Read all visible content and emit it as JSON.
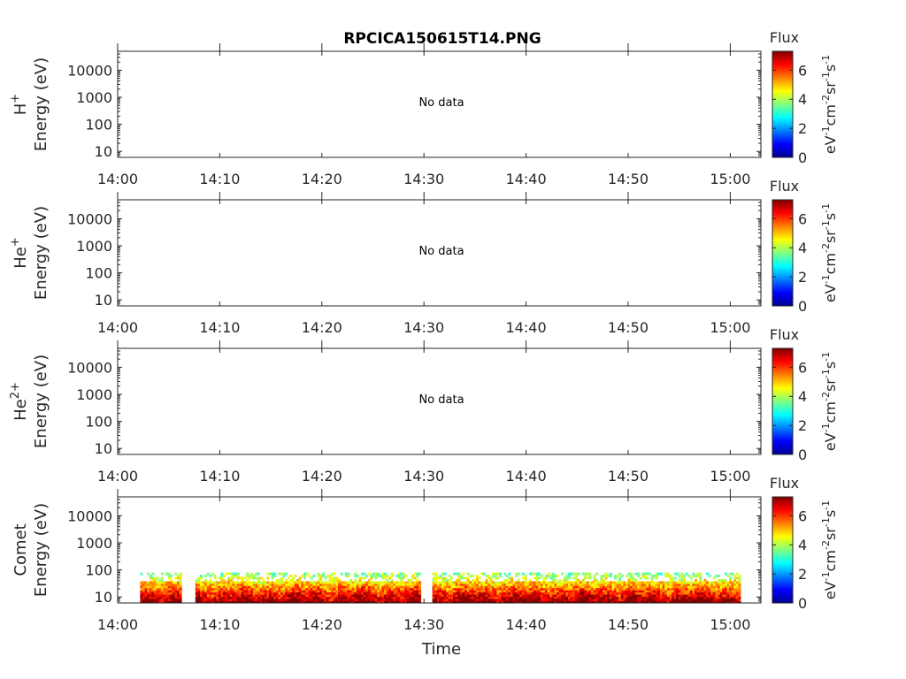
{
  "title": "RPCICA150615T14.PNG",
  "colorbar": {
    "label": "Flux",
    "units_base": "eV",
    "units_parts": [
      [
        "-1",
        "cm"
      ],
      [
        "-2",
        "sr"
      ],
      [
        "-1",
        "s"
      ],
      [
        "-1",
        ""
      ]
    ],
    "ticks": [
      "0",
      "2",
      "4",
      "6"
    ],
    "range": [
      0,
      7.3
    ]
  },
  "no_data_text": "No data",
  "x_label": "Time",
  "chart_data": [
    {
      "type": "heatmap",
      "species": "H",
      "species_sup": "+",
      "ylabel": "Energy (eV)",
      "x_ticks": [
        "14:00",
        "14:10",
        "14:20",
        "14:30",
        "14:40",
        "14:50",
        "15:00"
      ],
      "x_range_minutes": [
        0,
        63
      ],
      "y_ticks": [
        "10",
        "100",
        "1000",
        "10000"
      ],
      "y_scale": "log",
      "y_range": [
        6,
        50000
      ],
      "has_data": false
    },
    {
      "type": "heatmap",
      "species": "He",
      "species_sup": "+",
      "ylabel": "Energy (eV)",
      "x_ticks": [
        "14:00",
        "14:10",
        "14:20",
        "14:30",
        "14:40",
        "14:50",
        "15:00"
      ],
      "x_range_minutes": [
        0,
        63
      ],
      "y_ticks": [
        "10",
        "100",
        "1000",
        "10000"
      ],
      "y_scale": "log",
      "y_range": [
        6,
        50000
      ],
      "has_data": false
    },
    {
      "type": "heatmap",
      "species": "He",
      "species_sup": "2+",
      "ylabel": "Energy (eV)",
      "x_ticks": [
        "14:00",
        "14:10",
        "14:20",
        "14:30",
        "14:40",
        "14:50",
        "15:00"
      ],
      "x_range_minutes": [
        0,
        63
      ],
      "y_ticks": [
        "10",
        "100",
        "1000",
        "10000"
      ],
      "y_scale": "log",
      "y_range": [
        6,
        50000
      ],
      "has_data": false
    },
    {
      "type": "heatmap",
      "species": "Comet",
      "species_sup": "",
      "ylabel": "Energy (eV)",
      "x_ticks": [
        "14:00",
        "14:10",
        "14:20",
        "14:30",
        "14:40",
        "14:50",
        "15:00"
      ],
      "x_range_minutes": [
        0,
        63
      ],
      "y_ticks": [
        "10",
        "100",
        "1000",
        "10000"
      ],
      "y_scale": "log",
      "y_range": [
        6,
        50000
      ],
      "has_data": true,
      "data_time_range_minutes": [
        2.2,
        60.8
      ],
      "data_energy_range_eV": [
        6,
        80
      ],
      "gaps_minutes": [
        [
          6.2,
          7.5
        ],
        [
          29.6,
          30.8
        ]
      ],
      "peak_flux": 7.2
    }
  ]
}
